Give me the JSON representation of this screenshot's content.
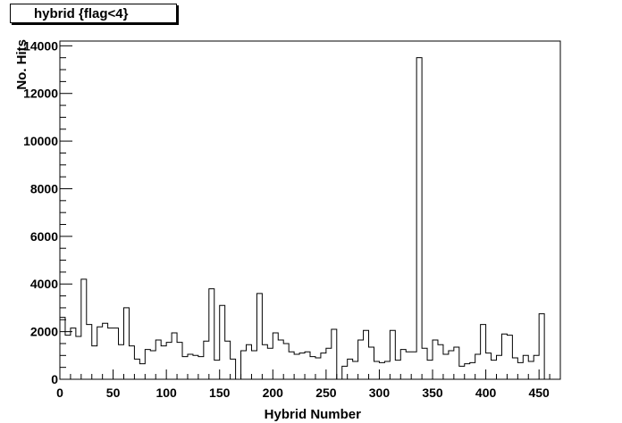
{
  "chart_data": {
    "type": "histogram",
    "title": "hybrid {flag<4}",
    "xlabel": "Hybrid Number",
    "ylabel": "No. Hits",
    "xlim": [
      0,
      470
    ],
    "ylim": [
      0,
      14200
    ],
    "bin_width": 5,
    "x_ticks": [
      0,
      50,
      100,
      150,
      200,
      250,
      300,
      350,
      400,
      450
    ],
    "y_ticks": [
      0,
      2000,
      4000,
      6000,
      8000,
      10000,
      12000,
      14000
    ],
    "bins_start": 0,
    "values": [
      2600,
      1850,
      2150,
      1800,
      4200,
      2300,
      1400,
      2200,
      2350,
      2150,
      2150,
      1450,
      3000,
      1400,
      850,
      650,
      1250,
      1200,
      1650,
      1400,
      1550,
      1950,
      1550,
      950,
      1050,
      1000,
      950,
      1600,
      3800,
      800,
      3100,
      1600,
      850,
      0,
      1200,
      1450,
      1200,
      3600,
      1450,
      1300,
      1950,
      1650,
      1500,
      1150,
      1050,
      1100,
      1150,
      950,
      900,
      1100,
      1300,
      2100,
      0,
      550,
      850,
      750,
      1650,
      2050,
      1350,
      750,
      700,
      750,
      2050,
      800,
      1250,
      1150,
      1150,
      13500,
      1300,
      800,
      1650,
      1450,
      1050,
      1200,
      1350,
      550,
      650,
      700,
      1050,
      2300,
      1100,
      800,
      1000,
      1900,
      1850,
      900,
      700,
      1000,
      750,
      1000,
      2750
    ]
  }
}
